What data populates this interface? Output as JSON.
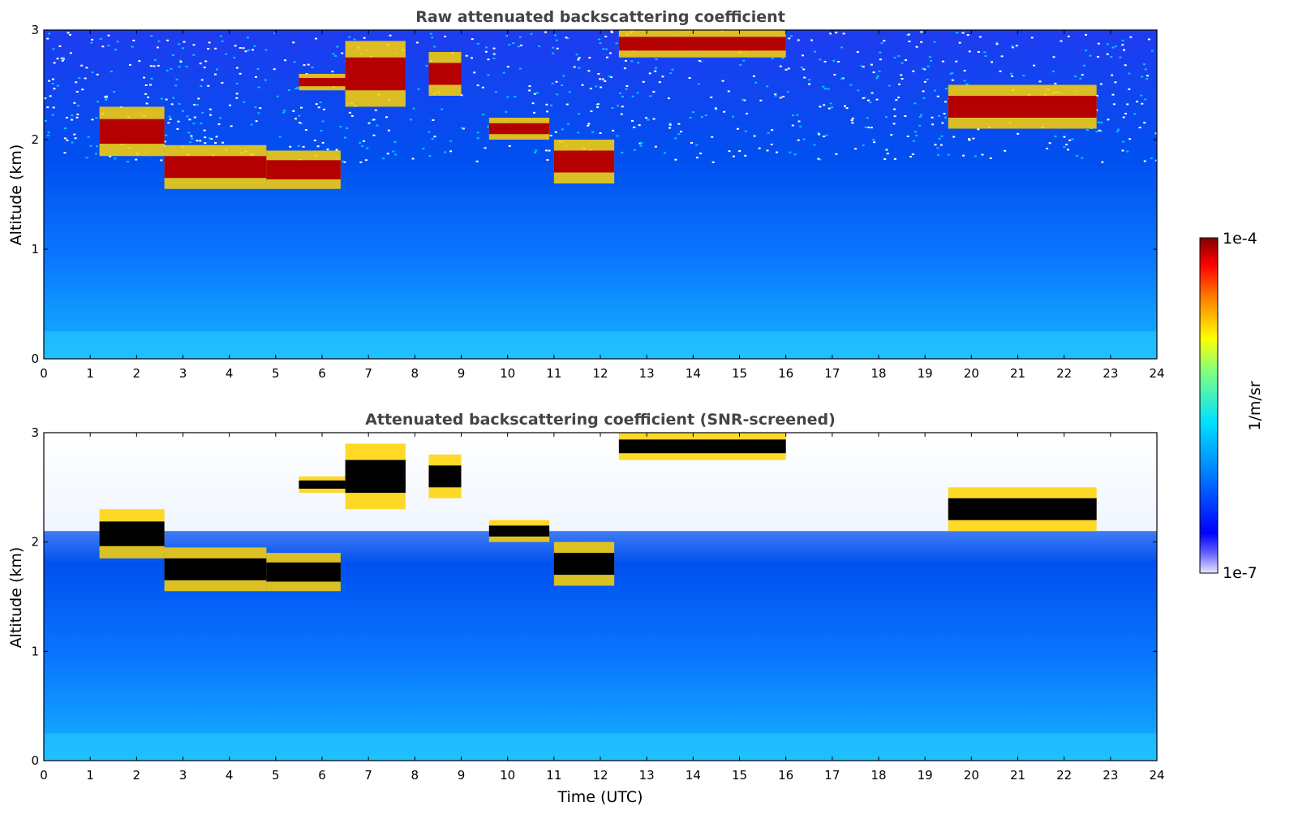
{
  "chart_data": [
    {
      "type": "heatmap",
      "title": "Raw attenuated backscattering coefficient",
      "xlabel": "",
      "ylabel": "Altitude (km)",
      "xlim": [
        0,
        24
      ],
      "ylim": [
        0,
        3
      ],
      "xticks": [
        "0",
        "1",
        "2",
        "3",
        "4",
        "5",
        "6",
        "7",
        "8",
        "9",
        "10",
        "11",
        "12",
        "13",
        "14",
        "15",
        "16",
        "17",
        "18",
        "19",
        "20",
        "21",
        "22",
        "23",
        "24"
      ],
      "yticks": [
        "0",
        "1",
        "2",
        "3"
      ],
      "screened": false,
      "cloud_layers": [
        {
          "t": [
            1.2,
            2.6
          ],
          "alt_km": [
            1.85,
            2.3
          ]
        },
        {
          "t": [
            2.6,
            4.8
          ],
          "alt_km": [
            1.55,
            1.95
          ]
        },
        {
          "t": [
            4.8,
            6.4
          ],
          "alt_km": [
            1.55,
            1.9
          ]
        },
        {
          "t": [
            5.5,
            6.5
          ],
          "alt_km": [
            2.45,
            2.6
          ]
        },
        {
          "t": [
            6.5,
            7.8
          ],
          "alt_km": [
            2.3,
            2.9
          ]
        },
        {
          "t": [
            8.3,
            9.0
          ],
          "alt_km": [
            2.4,
            2.8
          ]
        },
        {
          "t": [
            9.6,
            10.9
          ],
          "alt_km": [
            2.0,
            2.2
          ]
        },
        {
          "t": [
            11.0,
            12.3
          ],
          "alt_km": [
            1.6,
            2.0
          ]
        },
        {
          "t": [
            12.4,
            16.0
          ],
          "alt_km": [
            2.75,
            3.0
          ]
        },
        {
          "t": [
            19.5,
            22.7
          ],
          "alt_km": [
            2.1,
            2.5
          ]
        }
      ]
    },
    {
      "type": "heatmap",
      "title": "Attenuated backscattering coefficient (SNR-screened)",
      "xlabel": "Time (UTC)",
      "ylabel": "Altitude (km)",
      "xlim": [
        0,
        24
      ],
      "ylim": [
        0,
        3
      ],
      "xticks": [
        "0",
        "1",
        "2",
        "3",
        "4",
        "5",
        "6",
        "7",
        "8",
        "9",
        "10",
        "11",
        "12",
        "13",
        "14",
        "15",
        "16",
        "17",
        "18",
        "19",
        "20",
        "21",
        "22",
        "23",
        "24"
      ],
      "yticks": [
        "0",
        "1",
        "2",
        "3"
      ],
      "screened": true,
      "cloud_layers": [
        {
          "t": [
            1.2,
            2.6
          ],
          "alt_km": [
            1.85,
            2.3
          ]
        },
        {
          "t": [
            2.6,
            4.8
          ],
          "alt_km": [
            1.55,
            1.95
          ]
        },
        {
          "t": [
            4.8,
            6.4
          ],
          "alt_km": [
            1.55,
            1.9
          ]
        },
        {
          "t": [
            5.5,
            6.5
          ],
          "alt_km": [
            2.45,
            2.6
          ]
        },
        {
          "t": [
            6.5,
            7.8
          ],
          "alt_km": [
            2.3,
            2.9
          ]
        },
        {
          "t": [
            8.3,
            9.0
          ],
          "alt_km": [
            2.4,
            2.8
          ]
        },
        {
          "t": [
            9.6,
            10.9
          ],
          "alt_km": [
            2.0,
            2.2
          ]
        },
        {
          "t": [
            11.0,
            12.3
          ],
          "alt_km": [
            1.6,
            2.0
          ]
        },
        {
          "t": [
            12.4,
            16.0
          ],
          "alt_km": [
            2.75,
            3.0
          ]
        },
        {
          "t": [
            19.5,
            22.7
          ],
          "alt_km": [
            2.1,
            2.5
          ]
        }
      ]
    }
  ],
  "colorbar": {
    "max_label": "1e-4",
    "min_label": "1e-7",
    "unit_label": "1/m/sr",
    "colormap": "jet",
    "colors": [
      "#e8e8ff",
      "#0000ff",
      "#0080ff",
      "#00e0ff",
      "#80ff80",
      "#ffff00",
      "#ff8000",
      "#ff0000",
      "#800000"
    ]
  }
}
